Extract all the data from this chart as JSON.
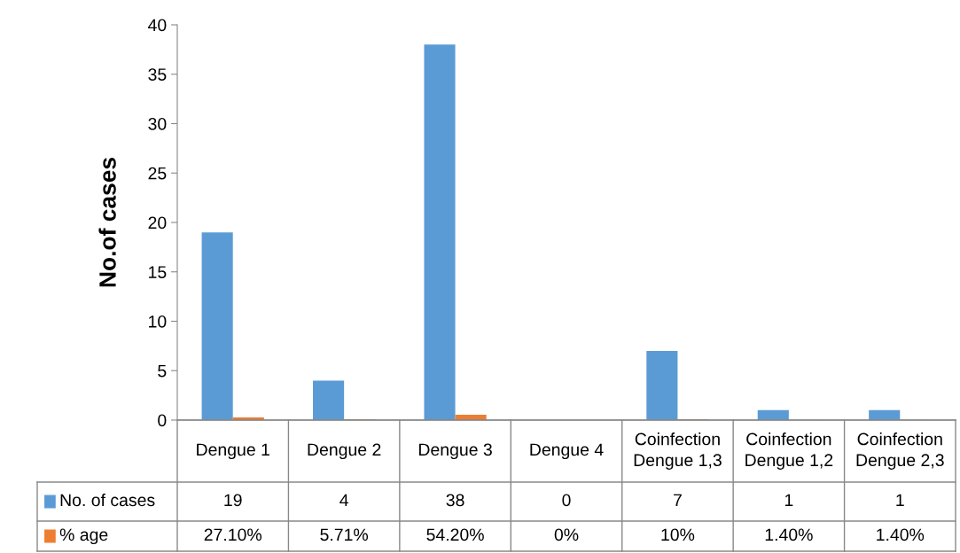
{
  "chart_data": {
    "type": "bar",
    "ylabel": "No.of cases",
    "categories": [
      "Dengue 1",
      "Dengue 2",
      "Dengue 3",
      "Dengue 4",
      "Coinfection Dengue 1,3",
      "Coinfection Dengue 1,2",
      "Coinfection Dengue 2,3"
    ],
    "series": [
      {
        "name": "No. of cases",
        "color": "#5b9bd5",
        "values": [
          19,
          4,
          38,
          0,
          7,
          1,
          1
        ],
        "value_labels": [
          "19",
          "4",
          "38",
          "0",
          "7",
          "1",
          "1"
        ]
      },
      {
        "name": "% age",
        "color": "#ed7d31",
        "values": [
          0.271,
          0.0571,
          0.542,
          0,
          0.1,
          0.014,
          0.014
        ],
        "value_labels": [
          "27.10%",
          "5.71%",
          "54.20%",
          "0%",
          "10%",
          "1.40%",
          "1.40%"
        ]
      }
    ],
    "ylim": [
      0,
      40
    ],
    "yticks": [
      0,
      5,
      10,
      15,
      20,
      25,
      30,
      35,
      40
    ],
    "grid": false,
    "legend": "bottom"
  }
}
